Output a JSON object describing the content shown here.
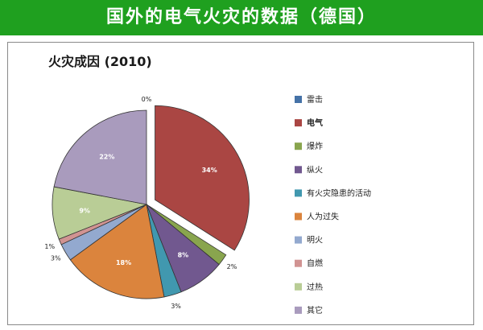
{
  "banner_title": "国外的电气火灾的数据（德国）",
  "chart_data": {
    "type": "pie",
    "title": "火灾成因 (2010)",
    "legend_position": "right",
    "slices": [
      {
        "label": "雷击",
        "value": 0,
        "value_label": "0%",
        "color": "#4572a7"
      },
      {
        "label": "电气",
        "value": 34,
        "value_label": "34%",
        "color": "#aa4643",
        "exploded": true
      },
      {
        "label": "爆炸",
        "value": 2,
        "value_label": "2%",
        "color": "#89a54e"
      },
      {
        "label": "纵火",
        "value": 8,
        "value_label": "8%",
        "color": "#71588f"
      },
      {
        "label": "有火灾隐患的活动",
        "value": 3,
        "value_label": "3%",
        "color": "#4198af"
      },
      {
        "label": "人为过失",
        "value": 18,
        "value_label": "18%",
        "color": "#db843d"
      },
      {
        "label": "明火",
        "value": 3,
        "value_label": "3%",
        "color": "#93a9cf"
      },
      {
        "label": "自燃",
        "value": 1,
        "value_label": "1%",
        "color": "#d19392"
      },
      {
        "label": "过热",
        "value": 9,
        "value_label": "9%",
        "color": "#b9cd96"
      },
      {
        "label": "其它",
        "value": 22,
        "value_label": "22%",
        "color": "#a99bbd"
      }
    ]
  }
}
